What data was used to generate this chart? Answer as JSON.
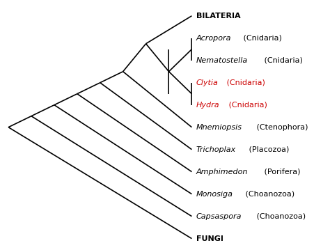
{
  "taxa": [
    {
      "name": "BILATERIA",
      "y": 10,
      "color": "black",
      "italic_part": null,
      "normal_part": "BILATERIA"
    },
    {
      "name": "Acropora (Cnidaria)",
      "y": 9,
      "color": "black",
      "italic_part": "Acropora",
      "normal_part": " (Cnidaria)"
    },
    {
      "name": "Nematostella (Cnidaria)",
      "y": 8,
      "color": "black",
      "italic_part": "Nematostella",
      "normal_part": " (Cnidaria)"
    },
    {
      "name": "Clytia (Cnidaria)",
      "y": 7,
      "color": "#cc0000",
      "italic_part": "Clytia",
      "normal_part": " (Cnidaria)"
    },
    {
      "name": "Hydra (Cnidaria)",
      "y": 6,
      "color": "#cc0000",
      "italic_part": "Hydra",
      "normal_part": " (Cnidaria)"
    },
    {
      "name": "Mnemiopsis (Ctenophora)",
      "y": 5,
      "color": "black",
      "italic_part": "Mnemiopsis",
      "normal_part": " (Ctenophora)"
    },
    {
      "name": "Trichoplax (Placozoa)",
      "y": 4,
      "color": "black",
      "italic_part": "Trichoplax",
      "normal_part": " (Placozoa)"
    },
    {
      "name": "Amphimedon (Porifera)",
      "y": 3,
      "color": "black",
      "italic_part": "Amphimedon",
      "normal_part": " (Porifera)"
    },
    {
      "name": "Monosiga (Choanozoa)",
      "y": 2,
      "color": "black",
      "italic_part": "Monosiga",
      "normal_part": " (Choanozoa)"
    },
    {
      "name": "Capsaspora (Choanozoa)",
      "y": 1,
      "color": "black",
      "italic_part": "Capsaspora",
      "normal_part": " (Choanozoa)"
    },
    {
      "name": "FUNGI",
      "y": 0,
      "color": "black",
      "italic_part": null,
      "normal_part": "FUNGI"
    }
  ],
  "line_color": "black",
  "line_width": 1.2,
  "background_color": "white",
  "font_size": 8.0,
  "figwidth": 4.74,
  "figheight": 3.59,
  "dpi": 100
}
